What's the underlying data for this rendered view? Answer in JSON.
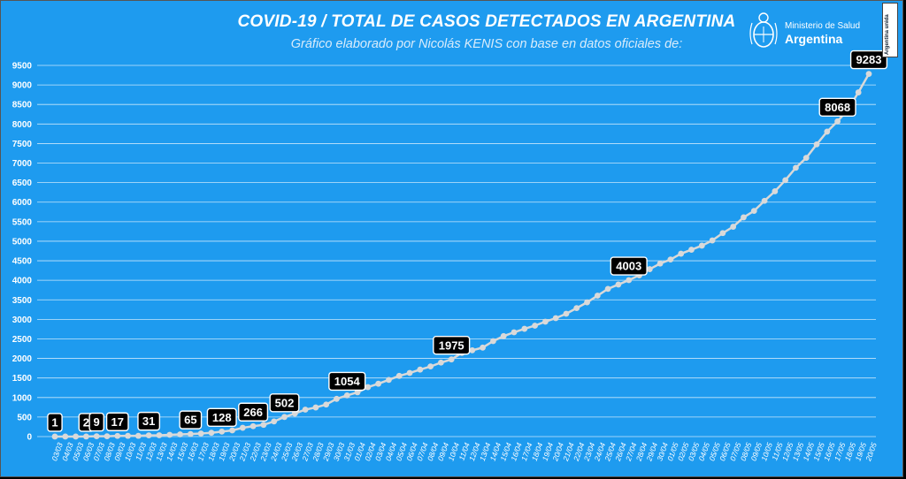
{
  "header": {
    "title": "COVID-19  /  TOTAL DE CASOS DETECTADOS EN ARGENTINA",
    "subtitle": "Gráfico elaborado por Nicolás KENIS con base en datos oficiales de:"
  },
  "logo": {
    "line1": "Ministerio de Salud",
    "line2": "Argentina",
    "icon": "argentina-coat-of-arms-icon"
  },
  "badge": {
    "text": "Argentina unida"
  },
  "colors": {
    "background": "#1e9bef",
    "line": "#d9d9d9",
    "label_bg": "#000000",
    "text": "#ffffff"
  },
  "chart_data": {
    "type": "line",
    "title": "COVID-19  /  TOTAL DE CASOS DETECTADOS EN ARGENTINA",
    "xlabel": "",
    "ylabel": "",
    "ylim": [
      0,
      9500
    ],
    "yticks": [
      0,
      500,
      1000,
      1500,
      2000,
      2500,
      3000,
      3500,
      4000,
      4500,
      5000,
      5500,
      6000,
      6500,
      7000,
      7500,
      8000,
      8500,
      9000,
      9500
    ],
    "grid": true,
    "x": [
      "03/03",
      "04/03",
      "05/03",
      "06/03",
      "07/03",
      "08/03",
      "09/03",
      "10/03",
      "11/03",
      "12/03",
      "13/03",
      "14/03",
      "15/03",
      "16/03",
      "17/03",
      "18/03",
      "19/03",
      "20/03",
      "21/03",
      "22/03",
      "23/03",
      "24/03",
      "25/03",
      "26/03",
      "27/03",
      "28/03",
      "29/03",
      "30/03",
      "31/03",
      "01/04",
      "02/04",
      "03/04",
      "04/04",
      "05/04",
      "06/04",
      "07/04",
      "08/04",
      "09/04",
      "10/04",
      "11/04",
      "12/04",
      "13/04",
      "14/04",
      "15/04",
      "16/04",
      "17/04",
      "18/04",
      "19/04",
      "20/04",
      "21/04",
      "22/04",
      "23/04",
      "24/04",
      "25/04",
      "26/04",
      "27/04",
      "28/04",
      "29/04",
      "30/04",
      "01/05",
      "02/05",
      "03/05",
      "04/05",
      "05/05",
      "06/05",
      "07/05",
      "08/05",
      "09/05",
      "10/05",
      "11/05",
      "12/05",
      "13/05",
      "14/05",
      "15/05",
      "16/05",
      "17/05",
      "18/05",
      "19/05",
      "20/05"
    ],
    "series": [
      {
        "values": [
          1,
          1,
          1,
          2,
          9,
          9,
          17,
          19,
          19,
          31,
          34,
          45,
          56,
          65,
          79,
          97,
          128,
          158,
          225,
          266,
          301,
          387,
          502,
          589,
          690,
          745,
          820,
          966,
          1054,
          1133,
          1265,
          1353,
          1451,
          1554,
          1628,
          1715,
          1795,
          1894,
          1975,
          2142,
          2208,
          2277,
          2443,
          2571,
          2669,
          2758,
          2839,
          2941,
          3031,
          3144,
          3288,
          3435,
          3607,
          3780,
          3892,
          4003,
          4127,
          4285,
          4428,
          4532,
          4681,
          4783,
          4887,
          5020,
          5208,
          5371,
          5611,
          5776,
          6034,
          6278,
          6563,
          6879,
          7134,
          7479,
          7805,
          8068,
          8371,
          8809,
          9283
        ]
      }
    ],
    "labeled_points": [
      {
        "x": "03/03",
        "value": 1
      },
      {
        "x": "06/03",
        "value": 2
      },
      {
        "x": "07/03",
        "value": 9
      },
      {
        "x": "09/03",
        "value": 17
      },
      {
        "x": "12/03",
        "value": 31
      },
      {
        "x": "16/03",
        "value": 65
      },
      {
        "x": "19/03",
        "value": 128
      },
      {
        "x": "22/03",
        "value": 266
      },
      {
        "x": "25/03",
        "value": 502
      },
      {
        "x": "31/03",
        "value": 1054
      },
      {
        "x": "10/04",
        "value": 1975
      },
      {
        "x": "27/04",
        "value": 4003
      },
      {
        "x": "17/05",
        "value": 8068
      },
      {
        "x": "20/05",
        "value": 9283
      }
    ]
  }
}
